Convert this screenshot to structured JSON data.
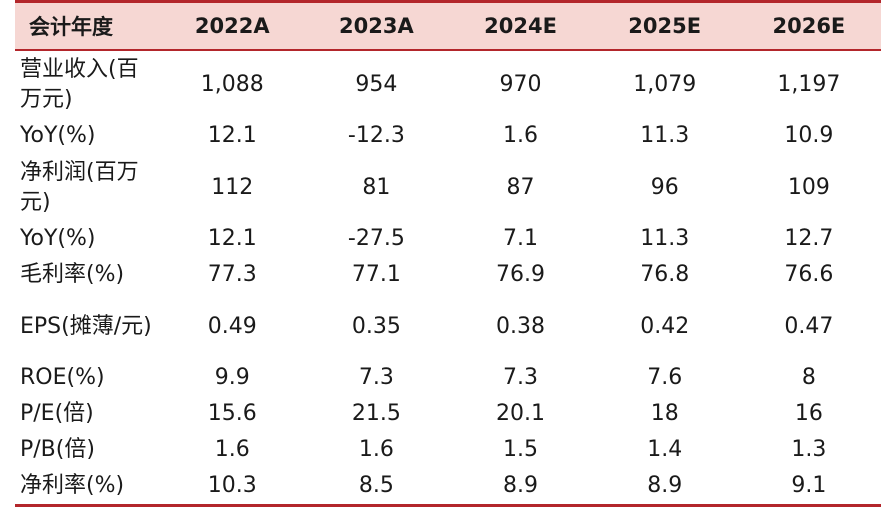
{
  "table": {
    "headers": [
      "会计年度",
      "2022A",
      "2023A",
      "2024E",
      "2025E",
      "2026E"
    ],
    "rows": [
      {
        "label": "营业收入(百万元)",
        "values": [
          "1,088",
          "954",
          "970",
          "1,079",
          "1,197"
        ],
        "tall": true
      },
      {
        "label": "YoY(%)",
        "values": [
          "12.1",
          "-12.3",
          "1.6",
          "11.3",
          "10.9"
        ],
        "tall": false
      },
      {
        "label": "净利润(百万元)",
        "values": [
          "112",
          "81",
          "87",
          "96",
          "109"
        ],
        "tall": true
      },
      {
        "label": "YoY(%)",
        "values": [
          "12.1",
          "-27.5",
          "7.1",
          "11.3",
          "12.7"
        ],
        "tall": false
      },
      {
        "label": "毛利率(%)",
        "values": [
          "77.3",
          "77.1",
          "76.9",
          "76.8",
          "76.6"
        ],
        "tall": false
      },
      {
        "label": "EPS(摊薄/元)",
        "values": [
          "0.49",
          "0.35",
          "0.38",
          "0.42",
          "0.47"
        ],
        "tall": true
      },
      {
        "label": "ROE(%)",
        "values": [
          "9.9",
          "7.3",
          "7.3",
          "7.6",
          "8"
        ],
        "tall": false
      },
      {
        "label": "P/E(倍)",
        "values": [
          "15.6",
          "21.5",
          "20.1",
          "18",
          "16"
        ],
        "tall": false
      },
      {
        "label": "P/B(倍)",
        "values": [
          "1.6",
          "1.6",
          "1.5",
          "1.4",
          "1.3"
        ],
        "tall": false
      },
      {
        "label": "净利率(%)",
        "values": [
          "10.3",
          "8.5",
          "8.9",
          "8.9",
          "9.1"
        ],
        "tall": false
      }
    ]
  },
  "colors": {
    "header_background": "#f6d7d3",
    "rule_color": "#b3262b"
  }
}
